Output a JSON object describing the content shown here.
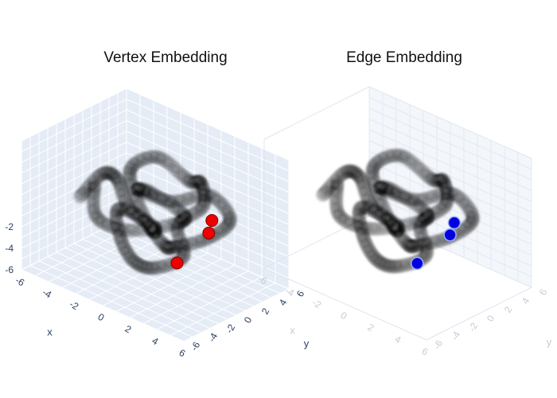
{
  "chart_data": [
    {
      "type": "scatter3d",
      "title": "Vertex Embedding",
      "xlabel": "x",
      "ylabel": "y",
      "x_ticks": [
        -6,
        -4,
        -2,
        0,
        2,
        4,
        6
      ],
      "y_ticks": [
        -6,
        -4,
        -2,
        0,
        2,
        4,
        6
      ],
      "z_ticks": [
        -6,
        -4,
        -2
      ],
      "background_color": "#e5ecf6",
      "series": [
        {
          "role": "trajectory",
          "marker_color": "#000000",
          "opacity": 0.18,
          "description_points": [
            [
              -4.5,
              -3.5,
              1.0
            ],
            [
              -3.5,
              -2.0,
              3.5
            ],
            [
              -1.5,
              -3.0,
              4.5
            ],
            [
              0.5,
              -4.5,
              3.0
            ],
            [
              1.5,
              -2.5,
              0.5
            ],
            [
              0.0,
              -0.5,
              -1.5
            ],
            [
              -2.0,
              0.5,
              0.5
            ],
            [
              -3.5,
              2.0,
              2.5
            ],
            [
              -2.0,
              3.5,
              4.0
            ],
            [
              0.5,
              4.0,
              2.5
            ],
            [
              2.5,
              2.5,
              4.0
            ],
            [
              4.0,
              0.5,
              3.0
            ],
            [
              3.0,
              -1.5,
              1.0
            ],
            [
              4.5,
              -3.0,
              -1.0
            ],
            [
              2.5,
              -4.0,
              -3.0
            ],
            [
              0.0,
              -3.0,
              -4.0
            ],
            [
              -2.5,
              -1.0,
              -3.5
            ],
            [
              -4.0,
              1.0,
              -2.0
            ],
            [
              -3.0,
              3.0,
              -3.5
            ],
            [
              -0.5,
              2.0,
              -4.5
            ],
            [
              1.5,
              0.5,
              -3.0
            ],
            [
              3.5,
              2.0,
              -1.5
            ],
            [
              4.5,
              3.5,
              0.5
            ],
            [
              2.0,
              4.5,
              1.5
            ],
            [
              0.0,
              2.5,
              0.5
            ],
            [
              -1.5,
              0.0,
              2.0
            ],
            [
              0.5,
              -1.5,
              3.5
            ],
            [
              2.5,
              0.0,
              1.5
            ],
            [
              1.0,
              1.5,
              -1.0
            ],
            [
              -1.0,
              -2.0,
              -1.5
            ],
            [
              -3.0,
              -3.5,
              -0.5
            ],
            [
              -4.5,
              -1.5,
              1.5
            ]
          ]
        },
        {
          "role": "highlight",
          "marker_color": "#ee0000",
          "points": [
            [
              4.6,
              0.8,
              1.6
            ],
            [
              4.9,
              -0.1,
              0.7
            ],
            [
              3.2,
              -1.9,
              -2.9
            ]
          ]
        }
      ]
    },
    {
      "type": "scatter3d",
      "title": "Edge Embedding",
      "xlabel": "x",
      "ylabel": "y",
      "x_ticks": [
        -6,
        -4,
        -2,
        0,
        2,
        4,
        6
      ],
      "y_ticks": [
        -6,
        -4,
        -2,
        0,
        2,
        4,
        6
      ],
      "background_color": "#e5ecf6",
      "series": [
        {
          "role": "trajectory",
          "marker_color": "#000000",
          "opacity": 0.18
        },
        {
          "role": "highlight",
          "marker_color": "#0000dd",
          "points": [
            [
              4.7,
              0.6,
              1.3
            ],
            [
              4.9,
              -0.3,
              0.4
            ],
            [
              3.1,
              -2.1,
              -3.1
            ]
          ]
        }
      ]
    }
  ]
}
